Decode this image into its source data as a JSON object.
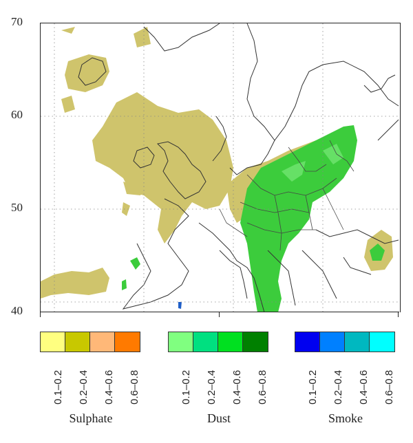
{
  "map": {
    "lat_ticks": [
      "70",
      "60",
      "50",
      "40"
    ]
  },
  "legends": [
    {
      "title": "Sulphate",
      "colors": [
        "#ffff80",
        "#c8c800",
        "#ffb878",
        "#ff7a00"
      ],
      "ranges": [
        "0.1–0.2",
        "0.2–0.4",
        "0.4–0.6",
        "0.6–0.8"
      ]
    },
    {
      "title": "Dust",
      "colors": [
        "#80ff80",
        "#00e080",
        "#00e020",
        "#008000"
      ],
      "ranges": [
        "0.1–0.2",
        "0.2–0.4",
        "0.4–0.6",
        "0.6–0.8"
      ]
    },
    {
      "title": "Smoke",
      "colors": [
        "#0000f0",
        "#0080ff",
        "#00b8c0",
        "#00ffff"
      ],
      "ranges": [
        "0.1–0.2",
        "0.2–0.4",
        "0.4–0.6",
        "0.6–0.8"
      ]
    }
  ]
}
